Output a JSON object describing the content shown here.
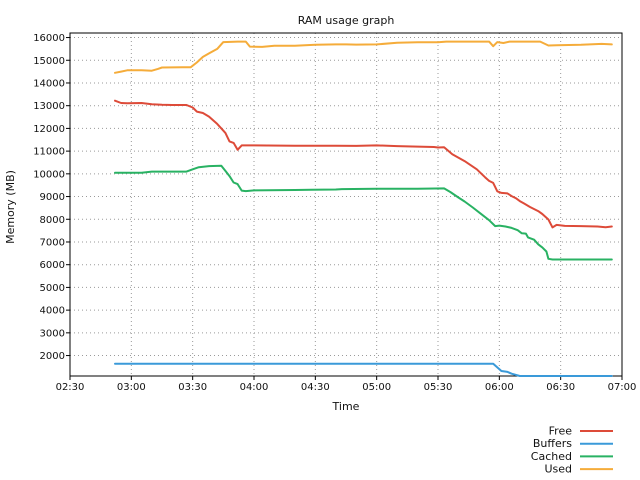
{
  "chart_data": {
    "type": "line",
    "title": "RAM usage graph",
    "xlabel": "Time",
    "ylabel": "Memory (MB)",
    "x_tick_labels": [
      "02:30",
      "03:00",
      "03:30",
      "04:00",
      "04:30",
      "05:00",
      "05:30",
      "06:00",
      "06:30",
      "07:00"
    ],
    "x_tick_minutes": [
      150,
      180,
      210,
      240,
      270,
      300,
      330,
      360,
      390,
      420
    ],
    "xlim_minutes": [
      150,
      420
    ],
    "ylim": [
      1100,
      16200
    ],
    "y_ticks": [
      2000,
      3000,
      4000,
      5000,
      6000,
      7000,
      8000,
      9000,
      10000,
      11000,
      12000,
      13000,
      14000,
      15000,
      16000
    ],
    "grid": true,
    "legend_position": "bottom-right",
    "series": [
      {
        "name": "Free",
        "color": "#dd4b39",
        "points": [
          [
            172,
            13220
          ],
          [
            175,
            13120
          ],
          [
            178,
            13110
          ],
          [
            185,
            13120
          ],
          [
            190,
            13060
          ],
          [
            195,
            13040
          ],
          [
            200,
            13030
          ],
          [
            207,
            13030
          ],
          [
            210,
            12920
          ],
          [
            212,
            12740
          ],
          [
            215,
            12680
          ],
          [
            218,
            12520
          ],
          [
            222,
            12200
          ],
          [
            226,
            11800
          ],
          [
            228,
            11430
          ],
          [
            230,
            11360
          ],
          [
            232,
            11060
          ],
          [
            234,
            11250
          ],
          [
            240,
            11250
          ],
          [
            260,
            11240
          ],
          [
            280,
            11240
          ],
          [
            290,
            11230
          ],
          [
            300,
            11250
          ],
          [
            310,
            11220
          ],
          [
            320,
            11200
          ],
          [
            328,
            11180
          ],
          [
            330,
            11160
          ],
          [
            333,
            11170
          ],
          [
            337,
            10860
          ],
          [
            343,
            10560
          ],
          [
            349,
            10200
          ],
          [
            353,
            9850
          ],
          [
            355,
            9690
          ],
          [
            357,
            9600
          ],
          [
            359,
            9230
          ],
          [
            361,
            9160
          ],
          [
            364,
            9140
          ],
          [
            366,
            9020
          ],
          [
            368,
            8930
          ],
          [
            370,
            8800
          ],
          [
            372,
            8700
          ],
          [
            375,
            8540
          ],
          [
            379,
            8360
          ],
          [
            381,
            8230
          ],
          [
            384,
            7990
          ],
          [
            386,
            7640
          ],
          [
            388,
            7750
          ],
          [
            392,
            7710
          ],
          [
            400,
            7700
          ],
          [
            408,
            7680
          ],
          [
            412,
            7650
          ],
          [
            415,
            7680
          ]
        ]
      },
      {
        "name": "Buffers",
        "color": "#3a9ad9",
        "points": [
          [
            172,
            1640
          ],
          [
            250,
            1640
          ],
          [
            340,
            1640
          ],
          [
            357,
            1640
          ],
          [
            361,
            1320
          ],
          [
            364,
            1280
          ],
          [
            366,
            1200
          ],
          [
            370,
            1100
          ],
          [
            385,
            1100
          ],
          [
            400,
            1100
          ],
          [
            410,
            1100
          ],
          [
            415,
            1100
          ]
        ]
      },
      {
        "name": "Cached",
        "color": "#29b263",
        "points": [
          [
            172,
            10050
          ],
          [
            185,
            10050
          ],
          [
            190,
            10100
          ],
          [
            200,
            10100
          ],
          [
            207,
            10100
          ],
          [
            210,
            10200
          ],
          [
            213,
            10290
          ],
          [
            218,
            10340
          ],
          [
            224,
            10360
          ],
          [
            226,
            10130
          ],
          [
            228,
            9900
          ],
          [
            230,
            9620
          ],
          [
            232,
            9550
          ],
          [
            234,
            9260
          ],
          [
            236,
            9240
          ],
          [
            240,
            9270
          ],
          [
            260,
            9290
          ],
          [
            268,
            9300
          ],
          [
            280,
            9310
          ],
          [
            283,
            9330
          ],
          [
            300,
            9340
          ],
          [
            320,
            9340
          ],
          [
            333,
            9360
          ],
          [
            336,
            9200
          ],
          [
            340,
            8960
          ],
          [
            343,
            8780
          ],
          [
            347,
            8520
          ],
          [
            351,
            8240
          ],
          [
            355,
            7960
          ],
          [
            358,
            7700
          ],
          [
            360,
            7720
          ],
          [
            363,
            7680
          ],
          [
            366,
            7620
          ],
          [
            369,
            7520
          ],
          [
            371,
            7380
          ],
          [
            373,
            7370
          ],
          [
            374,
            7200
          ],
          [
            377,
            7100
          ],
          [
            379,
            6900
          ],
          [
            381,
            6760
          ],
          [
            383,
            6580
          ],
          [
            384,
            6260
          ],
          [
            386,
            6230
          ],
          [
            400,
            6230
          ],
          [
            415,
            6230
          ]
        ]
      },
      {
        "name": "Used",
        "color": "#f5ac3a",
        "points": [
          [
            172,
            14450
          ],
          [
            175,
            14500
          ],
          [
            178,
            14560
          ],
          [
            185,
            14560
          ],
          [
            190,
            14540
          ],
          [
            193,
            14620
          ],
          [
            195,
            14680
          ],
          [
            205,
            14690
          ],
          [
            209,
            14690
          ],
          [
            212,
            14900
          ],
          [
            215,
            15150
          ],
          [
            218,
            15300
          ],
          [
            222,
            15500
          ],
          [
            225,
            15800
          ],
          [
            232,
            15820
          ],
          [
            236,
            15820
          ],
          [
            238,
            15600
          ],
          [
            244,
            15590
          ],
          [
            250,
            15640
          ],
          [
            260,
            15640
          ],
          [
            270,
            15680
          ],
          [
            280,
            15700
          ],
          [
            285,
            15700
          ],
          [
            290,
            15690
          ],
          [
            300,
            15700
          ],
          [
            310,
            15770
          ],
          [
            320,
            15790
          ],
          [
            330,
            15790
          ],
          [
            334,
            15820
          ],
          [
            340,
            15820
          ],
          [
            350,
            15820
          ],
          [
            355,
            15820
          ],
          [
            357,
            15620
          ],
          [
            359,
            15800
          ],
          [
            362,
            15760
          ],
          [
            365,
            15820
          ],
          [
            380,
            15820
          ],
          [
            384,
            15650
          ],
          [
            388,
            15660
          ],
          [
            400,
            15680
          ],
          [
            410,
            15720
          ],
          [
            415,
            15700
          ]
        ]
      }
    ]
  }
}
